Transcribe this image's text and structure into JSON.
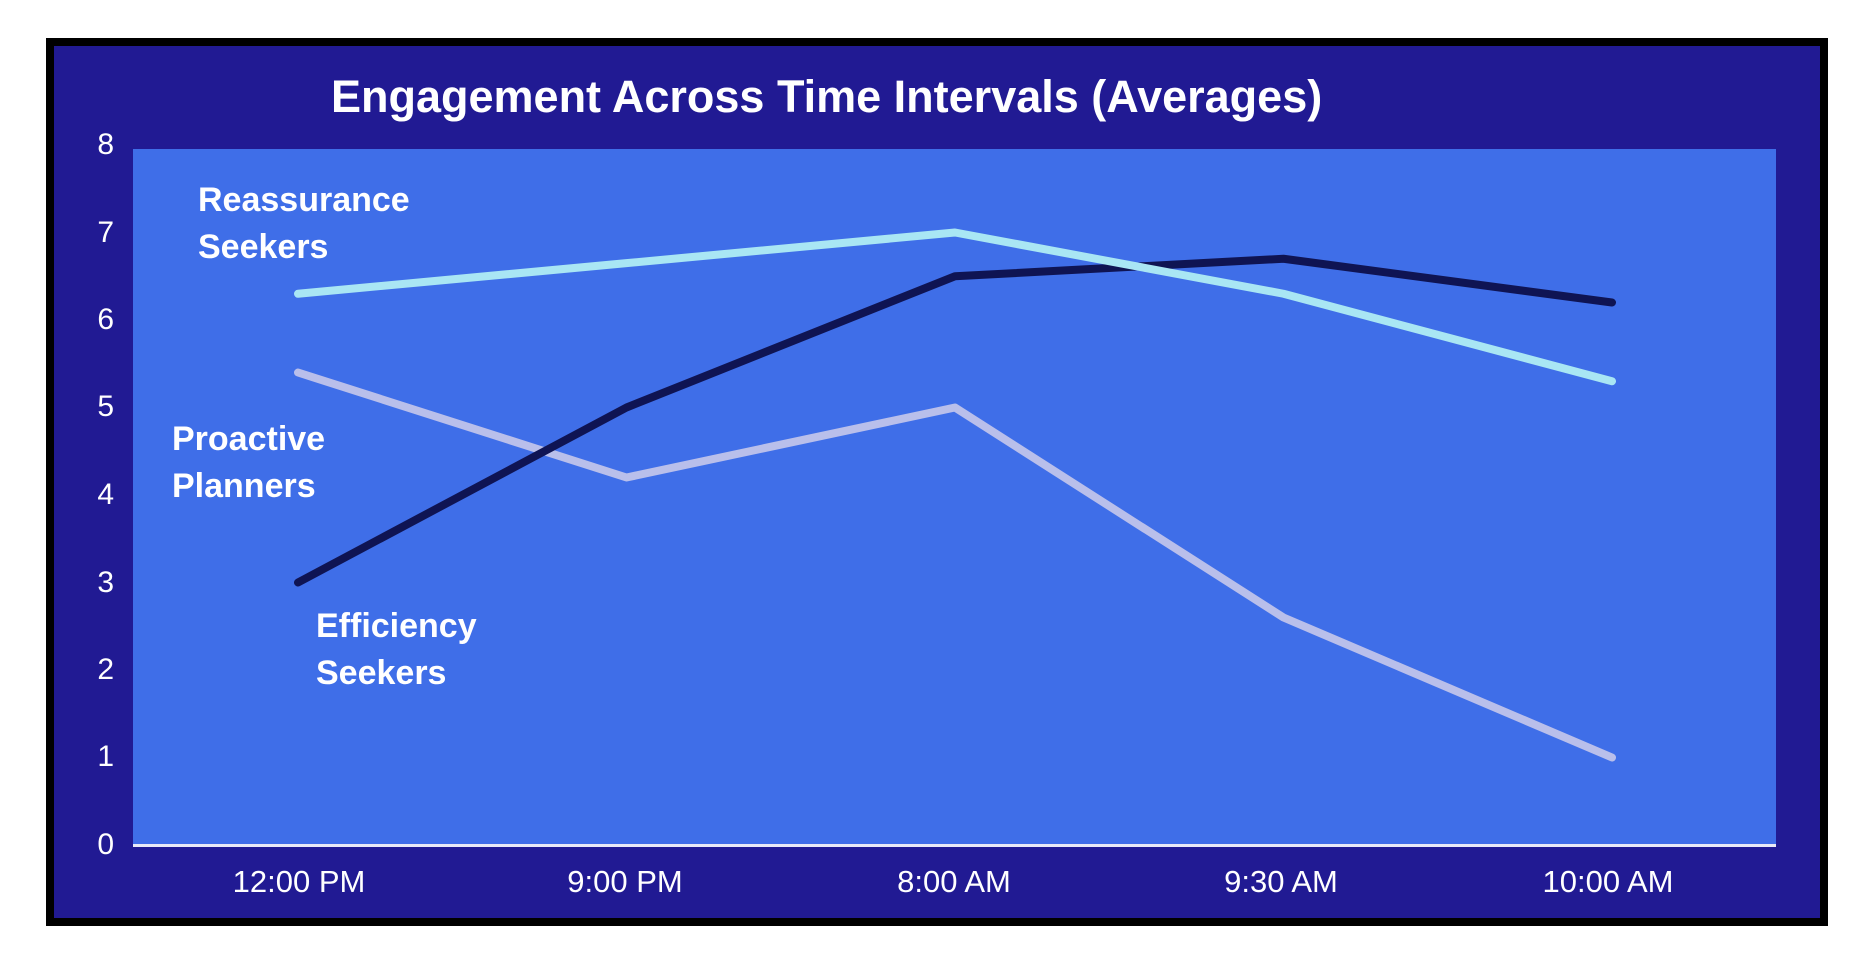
{
  "title": "Engagement Across Time Intervals (Averages)",
  "chart_data": {
    "type": "line",
    "title": "Engagement Across Time Intervals (Averages)",
    "categories": [
      "12:00 PM",
      "9:00 PM",
      "8:00 AM",
      "9:30 AM",
      "10:00 AM"
    ],
    "series": [
      {
        "name": "Proactive Planners",
        "values": [
          5.4,
          4.2,
          5.0,
          2.6,
          1.0
        ],
        "color": "#b9bfeb"
      },
      {
        "name": "Efficiency Seekers",
        "values": [
          3.0,
          5.0,
          6.5,
          6.7,
          6.2
        ],
        "color": "#0f1453"
      },
      {
        "name": "Reassurance Seekers",
        "values": [
          6.3,
          6.65,
          7.0,
          6.3,
          5.3
        ],
        "color": "#a9e6f4"
      }
    ],
    "xlabel": "",
    "ylabel": "",
    "ylim": [
      0,
      8
    ],
    "yticks": [
      "0",
      "1",
      "2",
      "3",
      "4",
      "5",
      "6",
      "7",
      "8"
    ],
    "grid": false,
    "legend_position": "inline-labels-on-plot"
  },
  "series_labels": [
    {
      "id": "reassurance",
      "lines": [
        "Reassurance",
        "Seekers"
      ]
    },
    {
      "id": "proactive",
      "lines": [
        "Proactive",
        "Planners"
      ]
    },
    {
      "id": "efficiency",
      "lines": [
        "Efficiency",
        "Seekers"
      ]
    }
  ],
  "colors": {
    "page_background": "#ffffff",
    "frame_border": "#000000",
    "chart_background": "#211a93",
    "plot_background": "#3f6ee8",
    "axis_line": "#e9eaf7",
    "text": "#ffffff"
  }
}
